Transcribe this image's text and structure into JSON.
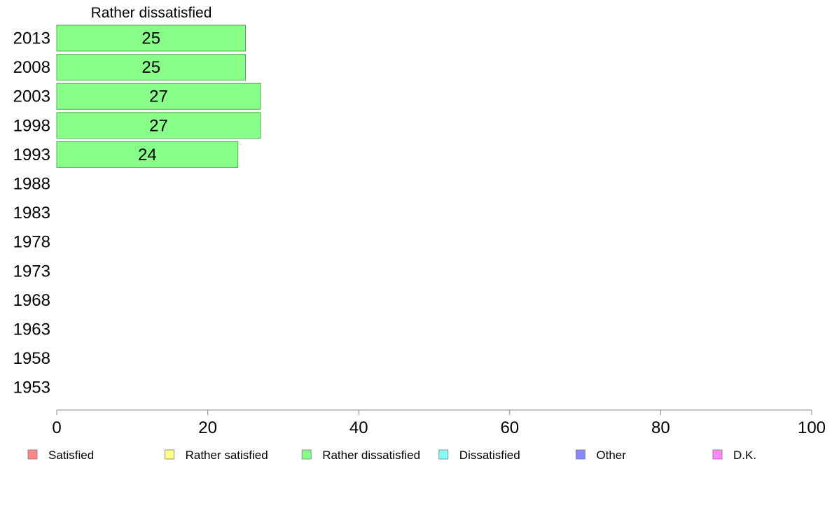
{
  "chart_data": {
    "type": "bar",
    "orientation": "horizontal",
    "title": "Rather dissatisfied",
    "categories": [
      "2013",
      "2008",
      "2003",
      "1998",
      "1993",
      "1988",
      "1983",
      "1978",
      "1973",
      "1968",
      "1963",
      "1958",
      "1953"
    ],
    "series": [
      {
        "name": "Rather dissatisfied",
        "color": "#88ff88",
        "values": [
          25,
          25,
          27,
          27,
          24,
          null,
          null,
          null,
          null,
          null,
          null,
          null,
          null
        ],
        "labels": [
          "25",
          "25",
          "27",
          "27",
          "24",
          "",
          "",
          "",
          "",
          "",
          "",
          "",
          ""
        ]
      }
    ],
    "xlim": [
      0,
      100
    ],
    "xticks": [
      "0",
      "20",
      "40",
      "60",
      "80",
      "100"
    ],
    "grid": false,
    "legend_position": "bottom",
    "legend": [
      {
        "label": "Satisfied",
        "color": "#ff8888"
      },
      {
        "label": "Rather satisfied",
        "color": "#ffff88"
      },
      {
        "label": "Rather dissatisfied",
        "color": "#88ff88"
      },
      {
        "label": "Dissatisfied",
        "color": "#88ffff"
      },
      {
        "label": "Other",
        "color": "#8888ff"
      },
      {
        "label": "D.K.",
        "color": "#ff88ff"
      }
    ]
  }
}
